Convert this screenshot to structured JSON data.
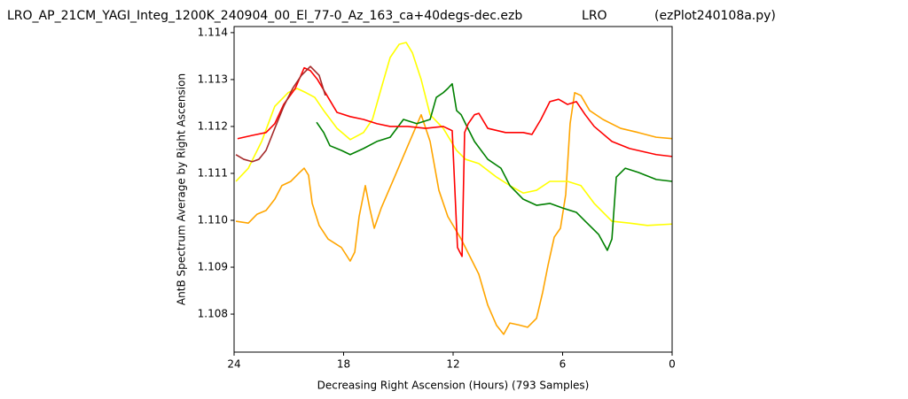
{
  "chart_data": {
    "type": "line",
    "title": "LRO_AP_21CM_YAGI_Integ_1200K_240904_00_El_77-0_Az_163_ca+40degs-dec.ezb               LRO            (ezPlot240108a.py)",
    "xlabel": "Decreasing Right Ascension (Hours) (793 Samples)",
    "ylabel": "AntB Spectrum Average by Right Ascension",
    "xlim": [
      24,
      0
    ],
    "xticks": [
      24,
      18,
      12,
      6,
      0
    ],
    "ylim": [
      1.10719,
      1.11413
    ],
    "yticks": [
      1.108,
      1.109,
      {
        "value": 1.11,
        "label": "1.110"
      },
      1.111,
      1.112,
      1.113,
      1.114
    ],
    "series": [
      {
        "color": "#ffa500",
        "x": [
          23.9,
          23.22,
          22.74,
          22.25,
          21.77,
          21.38,
          20.89,
          20.41,
          20.16,
          19.92,
          19.72,
          19.34,
          18.85,
          18.12,
          17.64,
          17.39,
          17.15,
          16.81,
          16.57,
          16.32,
          15.94,
          15.21,
          14.48,
          13.75,
          13.26,
          12.78,
          12.29,
          11.56,
          11.08,
          10.59,
          10.1,
          9.62,
          9.23,
          8.89,
          8.41,
          7.92,
          7.43,
          7.09,
          6.8,
          6.46,
          6.12,
          5.83,
          5.59,
          5.34,
          5.0,
          4.52,
          3.79,
          2.82,
          1.85,
          0.87,
          0
        ],
        "values": [
          1.10998,
          1.10994,
          1.11013,
          1.11021,
          1.11045,
          1.11074,
          1.11083,
          1.11102,
          1.11111,
          1.11096,
          1.11036,
          1.10989,
          1.1096,
          1.10942,
          1.10913,
          1.10932,
          1.11008,
          1.11074,
          1.11026,
          1.10983,
          1.11026,
          1.11092,
          1.11159,
          1.11225,
          1.11168,
          1.11064,
          1.11008,
          1.1096,
          1.10923,
          1.10885,
          1.10819,
          1.10776,
          1.10757,
          1.10781,
          1.10777,
          1.10772,
          1.10791,
          1.10847,
          1.10904,
          1.10964,
          1.10983,
          1.11055,
          1.11206,
          1.11272,
          1.11266,
          1.11234,
          1.11215,
          1.11196,
          1.11187,
          1.11177,
          1.11174
        ]
      },
      {
        "color": "#ffff00",
        "x": [
          23.9,
          23.22,
          22.49,
          21.77,
          21.04,
          20.55,
          20.06,
          19.58,
          19.09,
          18.36,
          17.64,
          16.91,
          16.42,
          15.94,
          15.45,
          14.96,
          14.57,
          14.23,
          13.75,
          13.26,
          12.54,
          11.81,
          11.32,
          10.59,
          9.62,
          8.89,
          8.16,
          7.43,
          6.7,
          5.73,
          5.0,
          4.27,
          3.3,
          2.33,
          1.36,
          0
        ],
        "values": [
          1.11083,
          1.11111,
          1.11168,
          1.11243,
          1.11272,
          1.11281,
          1.11272,
          1.11262,
          1.11234,
          1.11196,
          1.11172,
          1.11187,
          1.11215,
          1.11281,
          1.11347,
          1.11375,
          1.11379,
          1.11357,
          1.113,
          1.11225,
          1.11196,
          1.11149,
          1.1113,
          1.11121,
          1.11092,
          1.11074,
          1.11058,
          1.11064,
          1.11083,
          1.11083,
          1.11074,
          1.11036,
          1.10998,
          1.10994,
          1.10989,
          1.10992
        ]
      },
      {
        "color": "#008000",
        "x": [
          19.48,
          19.09,
          18.75,
          18.12,
          17.64,
          16.91,
          16.18,
          15.45,
          14.72,
          13.99,
          13.26,
          12.92,
          12.54,
          12.29,
          12.05,
          11.81,
          11.56,
          11.32,
          10.83,
          10.1,
          9.38,
          8.89,
          8.16,
          7.43,
          6.7,
          5.98,
          5.25,
          4.76,
          4.03,
          3.55,
          3.3,
          3.06,
          2.57,
          1.85,
          0.87,
          0
        ],
        "values": [
          1.11209,
          1.11187,
          1.11159,
          1.11149,
          1.1114,
          1.11153,
          1.11168,
          1.11177,
          1.11215,
          1.11206,
          1.11215,
          1.11262,
          1.11272,
          1.11281,
          1.11291,
          1.11234,
          1.11225,
          1.11206,
          1.11168,
          1.1113,
          1.11111,
          1.11074,
          1.11045,
          1.11032,
          1.11036,
          1.11026,
          1.11017,
          1.10998,
          1.1097,
          1.10936,
          1.1096,
          1.11092,
          1.11111,
          1.11102,
          1.11087,
          1.11083
        ]
      },
      {
        "color": "#ff0000",
        "x": [
          23.81,
          23.0,
          22.25,
          21.77,
          21.28,
          20.65,
          20.16,
          19.82,
          19.43,
          18.85,
          18.36,
          17.64,
          16.91,
          16.18,
          15.45,
          14.48,
          13.51,
          12.54,
          12.05,
          11.76,
          11.51,
          11.37,
          11.17,
          10.83,
          10.59,
          10.1,
          9.13,
          8.16,
          7.68,
          7.19,
          6.7,
          6.22,
          5.73,
          5.25,
          4.76,
          4.27,
          3.3,
          2.33,
          0.87,
          0
        ],
        "values": [
          1.11174,
          1.11181,
          1.11187,
          1.11206,
          1.11247,
          1.11281,
          1.11325,
          1.11319,
          1.113,
          1.11262,
          1.1123,
          1.11221,
          1.11215,
          1.11206,
          1.112,
          1.112,
          1.11196,
          1.112,
          1.11191,
          1.10942,
          1.10923,
          1.11187,
          1.11206,
          1.11225,
          1.11228,
          1.11196,
          1.11187,
          1.11187,
          1.11183,
          1.11215,
          1.11253,
          1.11258,
          1.11247,
          1.11253,
          1.11225,
          1.112,
          1.11168,
          1.11153,
          1.1114,
          1.11136
        ]
      },
      {
        "color": "#a52a2a",
        "x": [
          23.9,
          23.47,
          23.0,
          22.64,
          22.25,
          21.77,
          21.28,
          20.79,
          20.31,
          19.82,
          19.34,
          19.0
        ],
        "values": [
          1.1114,
          1.1113,
          1.11125,
          1.1113,
          1.11149,
          1.11196,
          1.11243,
          1.11281,
          1.11309,
          1.11328,
          1.11309,
          1.11266
        ]
      }
    ]
  }
}
